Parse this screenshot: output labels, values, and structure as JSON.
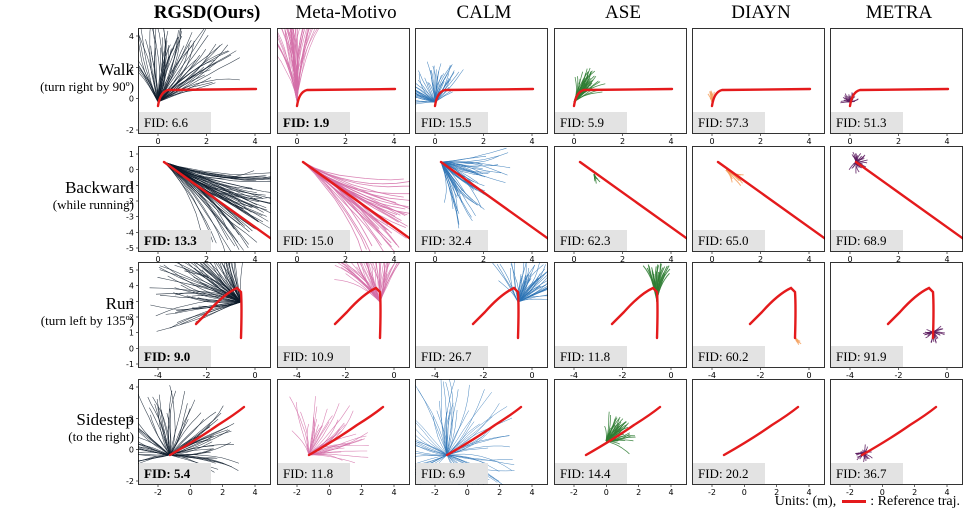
{
  "columns": [
    "RGSD(Ours)",
    "Meta-Motivo",
    "CALM",
    "ASE",
    "DIAYN",
    "METRA"
  ],
  "rows": [
    {
      "title": "Walk",
      "subtitle": "(turn right by 90º)",
      "fids": [
        "FID: 6.6",
        "FID: 1.9",
        "FID: 15.5",
        "FID: 5.9",
        "FID: 57.3",
        "FID: 51.3"
      ],
      "best": 1,
      "yticks": [
        "4",
        "2",
        "0",
        "-2"
      ],
      "xticks": [
        "0",
        "2",
        "4"
      ]
    },
    {
      "title": "Backward",
      "subtitle": "(while running)",
      "fids": [
        "FID: 13.3",
        "FID: 15.0",
        "FID: 32.4",
        "FID: 62.3",
        "FID: 65.0",
        "FID: 68.9"
      ],
      "best": 0,
      "yticks": [
        "1",
        "0",
        "-1",
        "-2",
        "-3",
        "-4",
        "-5"
      ],
      "xticks": [
        "0",
        "2",
        "4"
      ]
    },
    {
      "title": "Run",
      "subtitle": "(turn left by 135º)",
      "fids": [
        "FID: 9.0",
        "FID: 10.9",
        "FID: 26.7",
        "FID: 11.8",
        "FID: 60.2",
        "FID: 91.9"
      ],
      "best": 0,
      "yticks": [
        "5",
        "4",
        "3",
        "2",
        "1",
        "0",
        "-1"
      ],
      "xticks": [
        "-4",
        "-2",
        "0"
      ]
    },
    {
      "title": "Sidestep",
      "subtitle": "(to the right)",
      "fids": [
        "FID: 5.4",
        "FID: 11.8",
        "FID: 6.9",
        "FID: 14.4",
        "FID: 20.2",
        "FID: 36.7"
      ],
      "best": 0,
      "yticks": [
        "4",
        "2",
        "0",
        "-2"
      ],
      "xticks": [
        "-2",
        "0",
        "2",
        "4"
      ]
    }
  ],
  "footer": {
    "units": "Units: (m),",
    "legend": ": Reference traj."
  },
  "colors": {
    "reference": "#e41a1c",
    "RGSD(Ours)": "#0d1b2a",
    "Meta-Motivo": "#d36ea8",
    "CALM": "#2b73b5",
    "ASE": "#2e7d32",
    "DIAYN": "#f4a261",
    "METRA": "#5b1a5e"
  }
}
